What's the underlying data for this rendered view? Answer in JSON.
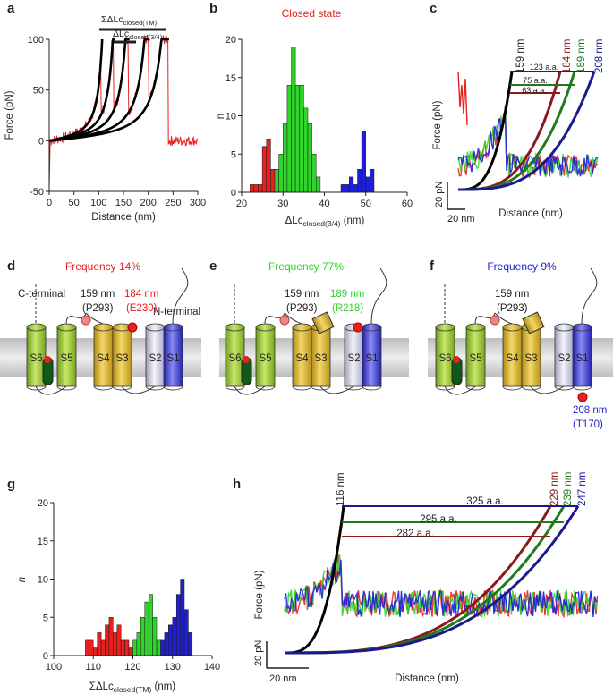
{
  "panels": {
    "a": {
      "label": "a",
      "xlabel": "Distance (nm)",
      "ylabel": "Force (pN)",
      "xticks": [
        "0",
        "50",
        "100",
        "150",
        "200",
        "250",
        "300"
      ],
      "yticks": [
        "-50",
        "0",
        "50",
        "100"
      ],
      "ann_tm": "ΣΔLc",
      "ann_tm_sub": "closed(TM)",
      "ann_34": "ΔLc",
      "ann_34_sub": "closed(3/4)"
    },
    "b": {
      "label": "b",
      "title": "Closed state",
      "xlabel": "ΔLc",
      "xlabel_sub": "closed(3/4)",
      "xlabel_unit": " (nm)",
      "ylabel": "n",
      "xticks": [
        "20",
        "30",
        "40",
        "50",
        "60"
      ],
      "yticks": [
        "0",
        "5",
        "10",
        "15",
        "20"
      ]
    },
    "c": {
      "label": "c",
      "xlabel": "Distance (nm)",
      "ylabel": "Force (pN)",
      "scale_y": "20 pN",
      "scale_x": "20 nm",
      "curve_labels": [
        "159 nm",
        "184 nm",
        "189 nm",
        "208 nm"
      ],
      "aa_labels": [
        "123 a.a.",
        "75 a.a.",
        "63 a.a."
      ]
    },
    "d": {
      "label": "d",
      "title": "Frequency 14%",
      "c_terminal": "C-terminal",
      "n_terminal": "N-terminal",
      "site1": "159 nm",
      "site1_res": "(P293)",
      "site2": "184 nm",
      "site2_res": "(E230)",
      "helices": [
        "S6",
        "S5",
        "S4",
        "S3",
        "S2",
        "S1"
      ]
    },
    "e": {
      "label": "e",
      "title": "Frequency 77%",
      "site1": "159 nm",
      "site1_res": "(P293)",
      "site2": "189 nm",
      "site2_res": "(R218)",
      "helices": [
        "S6",
        "S5",
        "S4",
        "S3",
        "S2",
        "S1"
      ]
    },
    "f": {
      "label": "f",
      "title": "Frequency 9%",
      "site1": "159 nm",
      "site1_res": "(P293)",
      "site2": "208 nm",
      "site2_res": "(T170)",
      "helices": [
        "S6",
        "S5",
        "S4",
        "S3",
        "S2",
        "S1"
      ]
    },
    "g": {
      "label": "g",
      "xlabel": "ΣΔLc",
      "xlabel_sub": "closed(TM)",
      "xlabel_unit": " (nm)",
      "ylabel": "n",
      "xticks": [
        "100",
        "110",
        "120",
        "130",
        "140"
      ],
      "yticks": [
        "0",
        "5",
        "10",
        "15",
        "20"
      ]
    },
    "h": {
      "label": "h",
      "xlabel": "Distance (nm)",
      "ylabel": "Force (pN)",
      "scale_y": "20 pN",
      "scale_x": "20 nm",
      "curve_labels": [
        "116 nm",
        "229 nm",
        "239 nm",
        "247 nm"
      ],
      "aa_labels": [
        "325 a.a.",
        "295 a.a.",
        "282 a.a."
      ]
    }
  },
  "colors": {
    "red": "#e8201e",
    "green": "#2fd52b",
    "blue": "#1f1fd6",
    "darkred": "#8b1a1a",
    "darkgreen": "#1f7a1f",
    "darkblue": "#1a1a8c"
  },
  "chart_data": [
    {
      "type": "line",
      "panel": "a",
      "xlabel": "Distance (nm)",
      "ylabel": "Force (pN)",
      "xlim": [
        0,
        300
      ],
      "ylim": [
        -50,
        100
      ],
      "rupture_peaks_nm": [
        105,
        130,
        160,
        200,
        240
      ],
      "wlc_contour_lengths_nm": [
        125,
        150,
        180,
        225,
        265
      ]
    },
    {
      "type": "bar",
      "panel": "b",
      "title": "Closed state",
      "xlabel": "ΔLc closed(3/4) (nm)",
      "ylabel": "n",
      "xlim": [
        20,
        60
      ],
      "ylim": [
        0,
        20
      ],
      "series": [
        {
          "name": "red",
          "bins": [
            22,
            23,
            24,
            25,
            26,
            27
          ],
          "values": [
            1,
            1,
            1,
            6,
            7,
            3
          ]
        },
        {
          "name": "green",
          "bins": [
            28,
            29,
            30,
            31,
            32,
            33,
            34,
            35,
            36,
            37,
            38
          ],
          "values": [
            3,
            5,
            9,
            14,
            19,
            14,
            14,
            11,
            9,
            5,
            2
          ]
        },
        {
          "name": "blue",
          "bins": [
            44,
            45,
            46,
            47,
            48,
            49,
            50,
            51
          ],
          "values": [
            1,
            1,
            2,
            1,
            3,
            8,
            2,
            3
          ]
        }
      ]
    },
    {
      "type": "bar",
      "panel": "g",
      "xlabel": "ΣΔLc closed(TM) (nm)",
      "ylabel": "n",
      "xlim": [
        100,
        140
      ],
      "ylim": [
        0,
        20
      ],
      "series": [
        {
          "name": "red",
          "bins": [
            108,
            109,
            110,
            111,
            112,
            113,
            114,
            115,
            116,
            117,
            118,
            119
          ],
          "values": [
            2,
            2,
            1,
            3,
            2,
            4,
            5,
            3,
            4,
            2,
            2,
            1
          ]
        },
        {
          "name": "green",
          "bins": [
            120,
            121,
            122,
            123,
            124,
            125,
            126
          ],
          "values": [
            2,
            3,
            5,
            7,
            8,
            5,
            2
          ]
        },
        {
          "name": "blue",
          "bins": [
            127,
            128,
            129,
            130,
            131,
            132,
            133,
            134
          ],
          "values": [
            2,
            3,
            4,
            5,
            8,
            10,
            6,
            3
          ]
        }
      ]
    }
  ]
}
